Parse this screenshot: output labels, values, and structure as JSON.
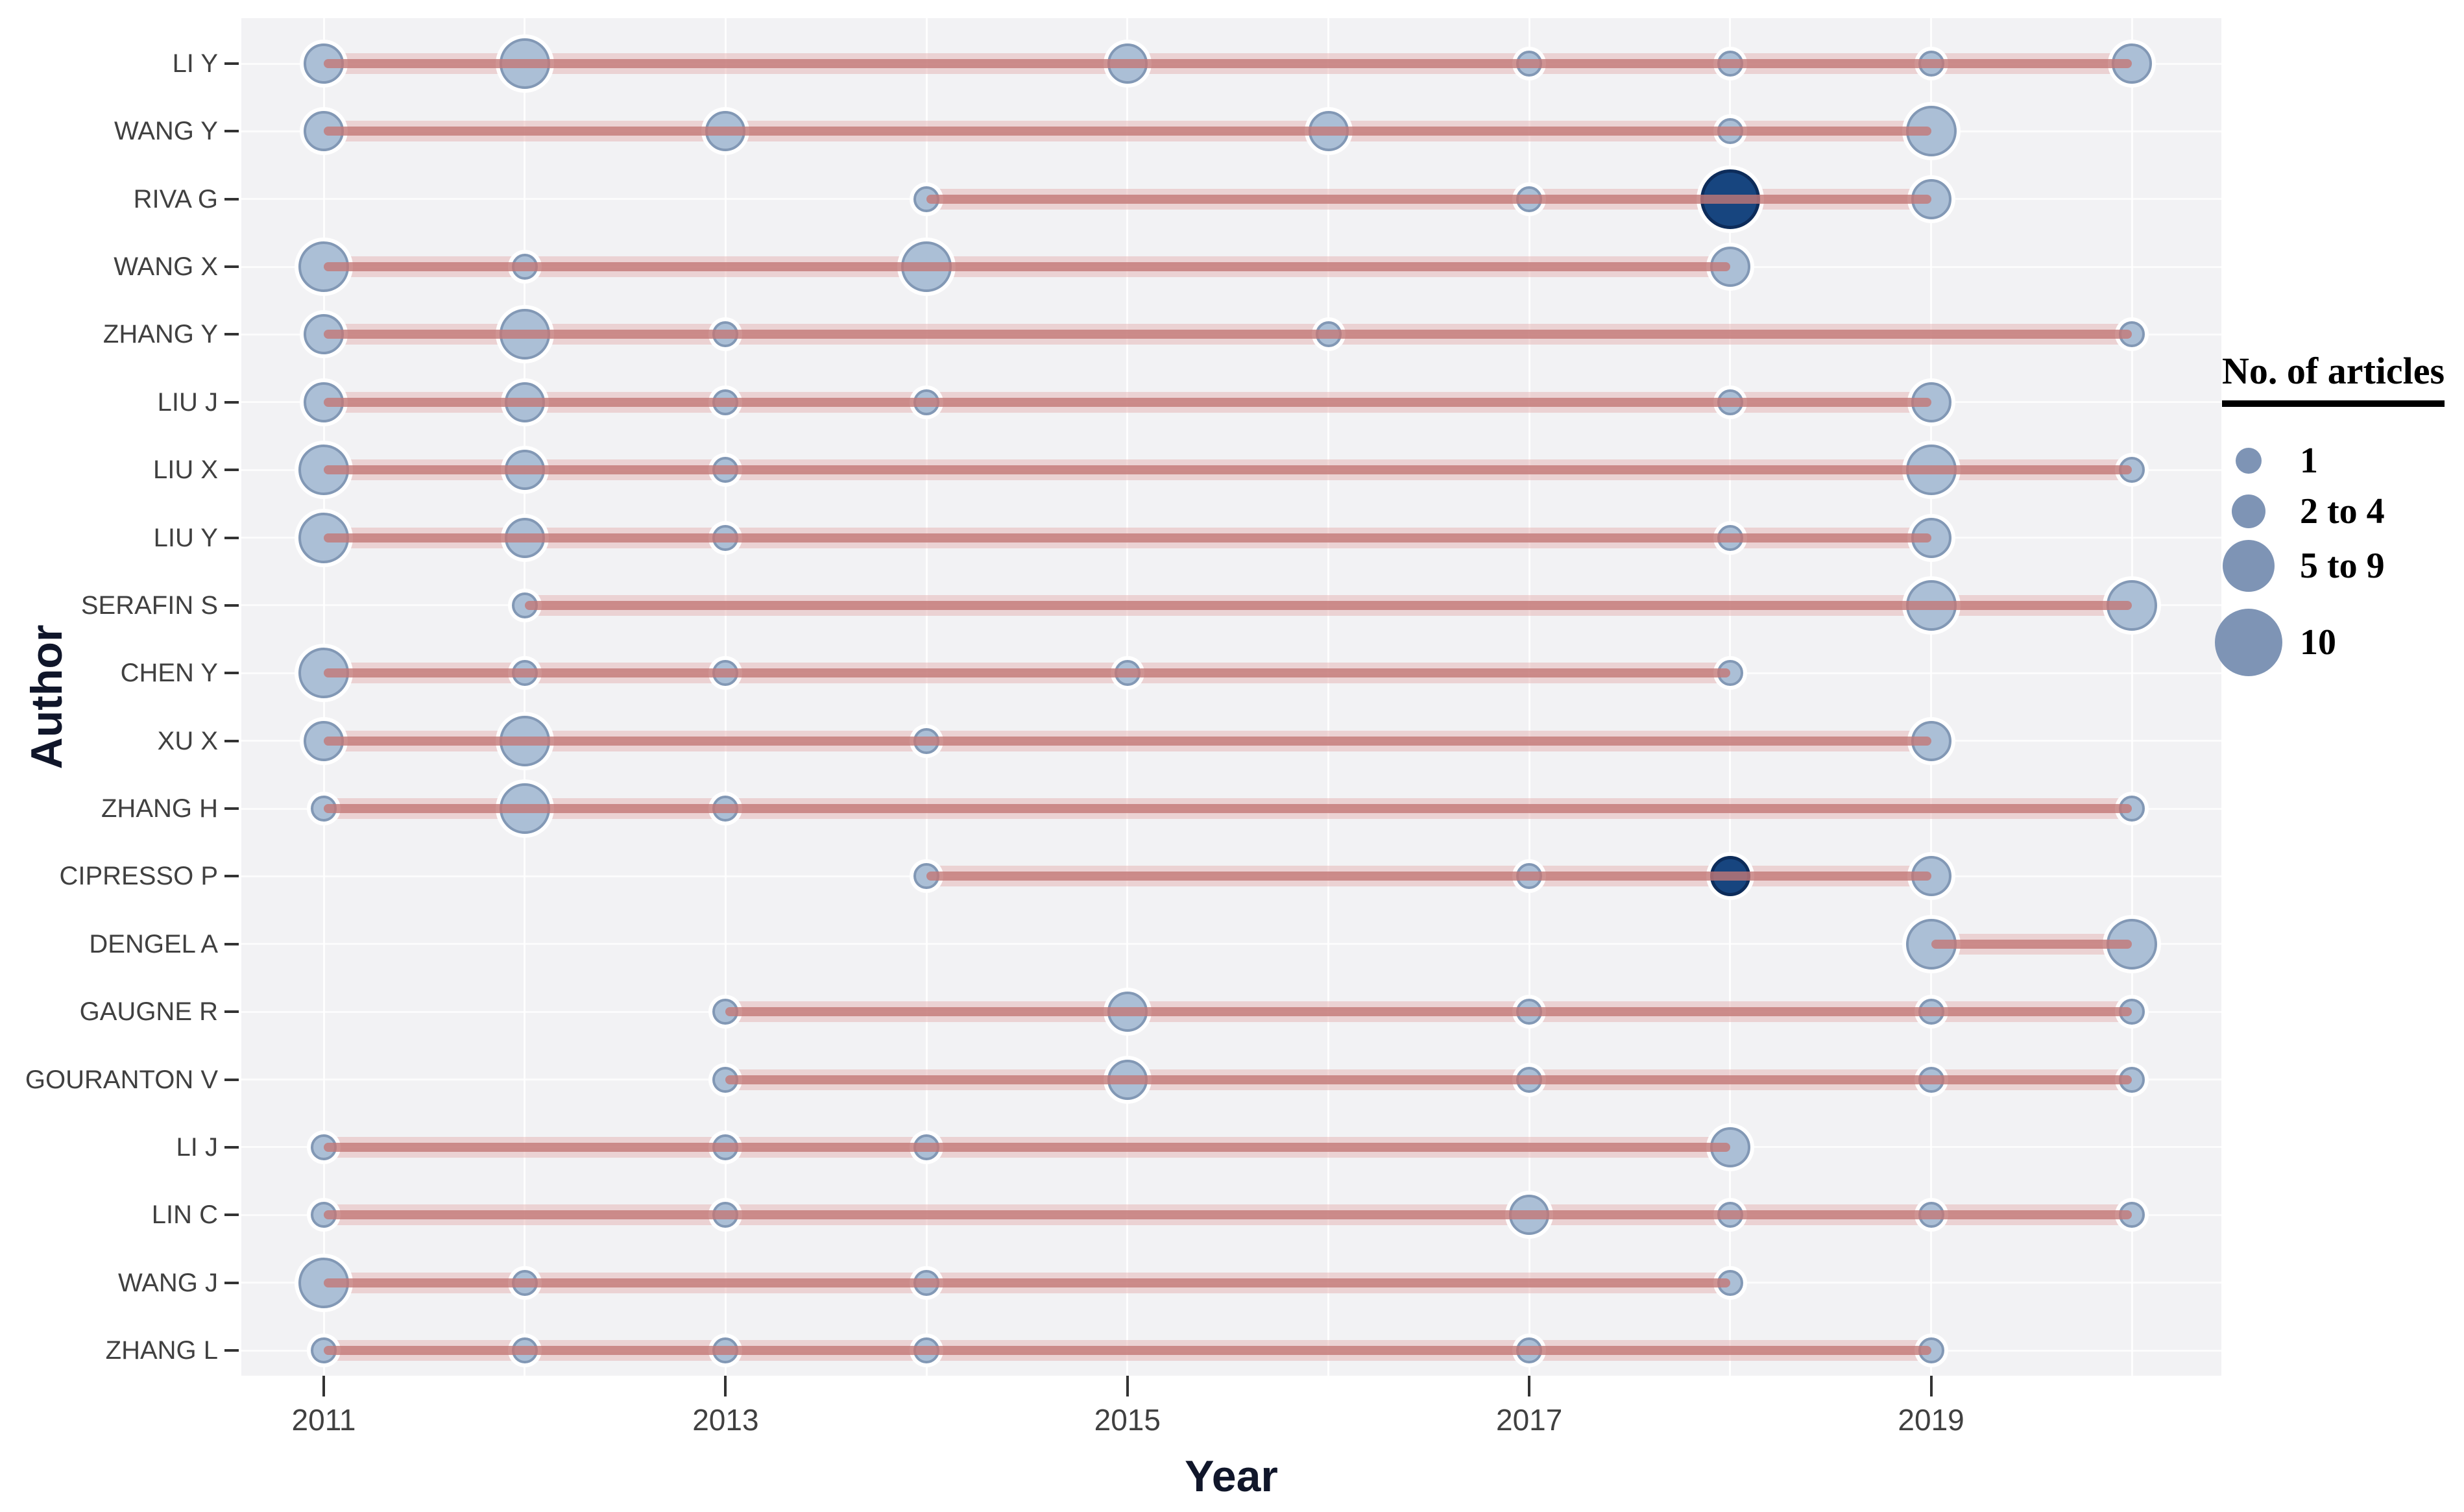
{
  "chart_data": {
    "type": "scatter",
    "title": "",
    "xlabel": "Year",
    "ylabel": "Author",
    "x_ticks": [
      2011,
      2013,
      2015,
      2017,
      2019
    ],
    "x_years": [
      2011,
      2012,
      2013,
      2014,
      2015,
      2016,
      2017,
      2018,
      2019,
      2020
    ],
    "x_range": [
      2011,
      2020
    ],
    "grid": true,
    "legend": {
      "title": "No. of articles",
      "position": "right",
      "items": [
        {
          "label": "1",
          "size_class": "1"
        },
        {
          "label": "2 to 4",
          "size_class": "2 to 4"
        },
        {
          "label": "5 to 9",
          "size_class": "5 to 9"
        },
        {
          "label": "10",
          "size_class": "10"
        }
      ]
    },
    "size_classes_radius_px": {
      "1": 20,
      "2 to 4": 31,
      "5 to 9": 39,
      "10": 46
    },
    "legend_radius_px": {
      "1": 20,
      "2 to 4": 26,
      "5 to 9": 40,
      "10": 52
    },
    "colors": {
      "dot_fill": "#abbfd6",
      "dot_border": "#8298b5",
      "dot_highlight_fill": "#17457f",
      "dot_highlight_border": "#0d2c5a",
      "legend_dot": "#7e94b5",
      "line_core": "#c37877",
      "line_glow": "#e2abab",
      "plot_bg": "#f2f2f4",
      "grid": "#ffffff",
      "axis_text": "#404040",
      "axis_title": "#10162a"
    },
    "series": [
      {
        "author": "LI Y",
        "line": [
          2011,
          2020
        ],
        "dots": [
          {
            "year": 2011,
            "articles": "2 to 4"
          },
          {
            "year": 2012,
            "articles": "5 to 9"
          },
          {
            "year": 2015,
            "articles": "2 to 4"
          },
          {
            "year": 2017,
            "articles": "1"
          },
          {
            "year": 2018,
            "articles": "1"
          },
          {
            "year": 2019,
            "articles": "1"
          },
          {
            "year": 2020,
            "articles": "2 to 4"
          }
        ]
      },
      {
        "author": "WANG Y",
        "line": [
          2011,
          2019
        ],
        "dots": [
          {
            "year": 2011,
            "articles": "2 to 4"
          },
          {
            "year": 2013,
            "articles": "2 to 4"
          },
          {
            "year": 2016,
            "articles": "2 to 4"
          },
          {
            "year": 2018,
            "articles": "1"
          },
          {
            "year": 2019,
            "articles": "5 to 9"
          }
        ]
      },
      {
        "author": "RIVA G",
        "line": [
          2014,
          2019
        ],
        "dots": [
          {
            "year": 2014,
            "articles": "1"
          },
          {
            "year": 2017,
            "articles": "1"
          },
          {
            "year": 2018,
            "articles": "10",
            "highlight": true
          },
          {
            "year": 2019,
            "articles": "2 to 4"
          }
        ]
      },
      {
        "author": "WANG X",
        "line": [
          2011,
          2018
        ],
        "dots": [
          {
            "year": 2011,
            "articles": "5 to 9"
          },
          {
            "year": 2012,
            "articles": "1"
          },
          {
            "year": 2014,
            "articles": "5 to 9"
          },
          {
            "year": 2018,
            "articles": "2 to 4"
          }
        ]
      },
      {
        "author": "ZHANG Y",
        "line": [
          2011,
          2020
        ],
        "dots": [
          {
            "year": 2011,
            "articles": "2 to 4"
          },
          {
            "year": 2012,
            "articles": "5 to 9"
          },
          {
            "year": 2013,
            "articles": "1"
          },
          {
            "year": 2016,
            "articles": "1"
          },
          {
            "year": 2020,
            "articles": "1"
          }
        ]
      },
      {
        "author": "LIU J",
        "line": [
          2011,
          2019
        ],
        "dots": [
          {
            "year": 2011,
            "articles": "2 to 4"
          },
          {
            "year": 2012,
            "articles": "2 to 4"
          },
          {
            "year": 2013,
            "articles": "1"
          },
          {
            "year": 2014,
            "articles": "1"
          },
          {
            "year": 2018,
            "articles": "1"
          },
          {
            "year": 2019,
            "articles": "2 to 4"
          }
        ]
      },
      {
        "author": "LIU X",
        "line": [
          2011,
          2020
        ],
        "dots": [
          {
            "year": 2011,
            "articles": "5 to 9"
          },
          {
            "year": 2012,
            "articles": "2 to 4"
          },
          {
            "year": 2013,
            "articles": "1"
          },
          {
            "year": 2019,
            "articles": "5 to 9"
          },
          {
            "year": 2020,
            "articles": "1"
          }
        ]
      },
      {
        "author": "LIU Y",
        "line": [
          2011,
          2019
        ],
        "dots": [
          {
            "year": 2011,
            "articles": "5 to 9"
          },
          {
            "year": 2012,
            "articles": "2 to 4"
          },
          {
            "year": 2013,
            "articles": "1"
          },
          {
            "year": 2018,
            "articles": "1"
          },
          {
            "year": 2019,
            "articles": "2 to 4"
          }
        ]
      },
      {
        "author": "SERAFIN S",
        "line": [
          2012,
          2020
        ],
        "dots": [
          {
            "year": 2012,
            "articles": "1"
          },
          {
            "year": 2019,
            "articles": "5 to 9"
          },
          {
            "year": 2020,
            "articles": "5 to 9"
          }
        ]
      },
      {
        "author": "CHEN Y",
        "line": [
          2011,
          2018
        ],
        "dots": [
          {
            "year": 2011,
            "articles": "5 to 9"
          },
          {
            "year": 2012,
            "articles": "1"
          },
          {
            "year": 2013,
            "articles": "1"
          },
          {
            "year": 2015,
            "articles": "1"
          },
          {
            "year": 2018,
            "articles": "1"
          }
        ]
      },
      {
        "author": "XU X",
        "line": [
          2011,
          2019
        ],
        "dots": [
          {
            "year": 2011,
            "articles": "2 to 4"
          },
          {
            "year": 2012,
            "articles": "5 to 9"
          },
          {
            "year": 2014,
            "articles": "1"
          },
          {
            "year": 2019,
            "articles": "2 to 4"
          }
        ]
      },
      {
        "author": "ZHANG H",
        "line": [
          2011,
          2020
        ],
        "dots": [
          {
            "year": 2011,
            "articles": "1"
          },
          {
            "year": 2012,
            "articles": "5 to 9"
          },
          {
            "year": 2013,
            "articles": "1"
          },
          {
            "year": 2020,
            "articles": "1"
          }
        ]
      },
      {
        "author": "CIPRESSO P",
        "line": [
          2014,
          2019
        ],
        "dots": [
          {
            "year": 2014,
            "articles": "1"
          },
          {
            "year": 2017,
            "articles": "1"
          },
          {
            "year": 2018,
            "articles": "2 to 4",
            "highlight": true
          },
          {
            "year": 2019,
            "articles": "2 to 4"
          }
        ]
      },
      {
        "author": "DENGEL A",
        "line": [
          2019,
          2020
        ],
        "dots": [
          {
            "year": 2019,
            "articles": "5 to 9"
          },
          {
            "year": 2020,
            "articles": "5 to 9"
          }
        ]
      },
      {
        "author": "GAUGNE R",
        "line": [
          2013,
          2020
        ],
        "dots": [
          {
            "year": 2013,
            "articles": "1"
          },
          {
            "year": 2015,
            "articles": "2 to 4"
          },
          {
            "year": 2017,
            "articles": "1"
          },
          {
            "year": 2019,
            "articles": "1"
          },
          {
            "year": 2020,
            "articles": "1"
          }
        ]
      },
      {
        "author": "GOURANTON V",
        "line": [
          2013,
          2020
        ],
        "dots": [
          {
            "year": 2013,
            "articles": "1"
          },
          {
            "year": 2015,
            "articles": "2 to 4"
          },
          {
            "year": 2017,
            "articles": "1"
          },
          {
            "year": 2019,
            "articles": "1"
          },
          {
            "year": 2020,
            "articles": "1"
          }
        ]
      },
      {
        "author": "LI J",
        "line": [
          2011,
          2018
        ],
        "dots": [
          {
            "year": 2011,
            "articles": "1"
          },
          {
            "year": 2013,
            "articles": "1"
          },
          {
            "year": 2014,
            "articles": "1"
          },
          {
            "year": 2018,
            "articles": "2 to 4"
          }
        ]
      },
      {
        "author": "LIN C",
        "line": [
          2011,
          2020
        ],
        "dots": [
          {
            "year": 2011,
            "articles": "1"
          },
          {
            "year": 2013,
            "articles": "1"
          },
          {
            "year": 2017,
            "articles": "2 to 4"
          },
          {
            "year": 2018,
            "articles": "1"
          },
          {
            "year": 2019,
            "articles": "1"
          },
          {
            "year": 2020,
            "articles": "1"
          }
        ]
      },
      {
        "author": "WANG J",
        "line": [
          2011,
          2018
        ],
        "dots": [
          {
            "year": 2011,
            "articles": "5 to 9"
          },
          {
            "year": 2012,
            "articles": "1"
          },
          {
            "year": 2014,
            "articles": "1"
          },
          {
            "year": 2018,
            "articles": "1"
          }
        ]
      },
      {
        "author": "ZHANG L",
        "line": [
          2011,
          2019
        ],
        "dots": [
          {
            "year": 2011,
            "articles": "1"
          },
          {
            "year": 2012,
            "articles": "1"
          },
          {
            "year": 2013,
            "articles": "1"
          },
          {
            "year": 2014,
            "articles": "1"
          },
          {
            "year": 2017,
            "articles": "1"
          },
          {
            "year": 2019,
            "articles": "1"
          }
        ]
      }
    ]
  }
}
